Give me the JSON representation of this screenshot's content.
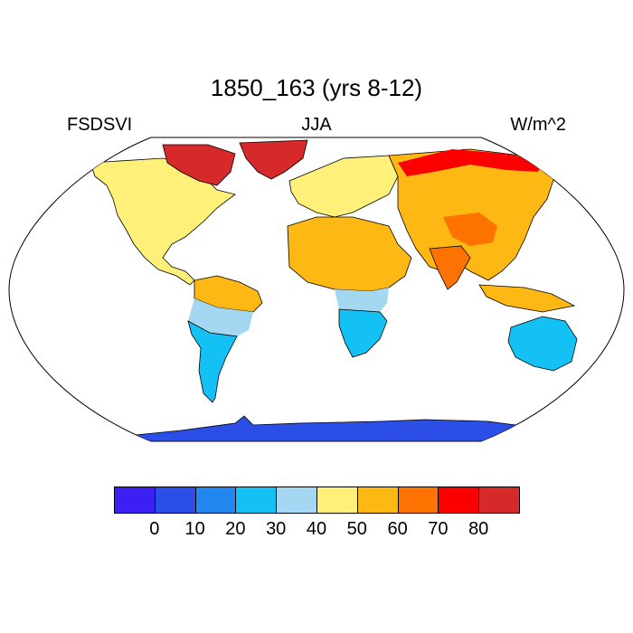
{
  "title": "1850_163 (yrs 8-12)",
  "subtitle_left": "FSDSVI",
  "subtitle_center": "JJA",
  "subtitle_right": "W/m^2",
  "colorbar": {
    "colors": [
      "#3c1ff2",
      "#2a4ee6",
      "#2288f0",
      "#13c1f5",
      "#a3d7f2",
      "#fff07a",
      "#fdb813",
      "#fd7200",
      "#fa0000",
      "#d62a2a"
    ],
    "tick_labels": [
      "0",
      "10",
      "20",
      "30",
      "40",
      "50",
      "60",
      "70",
      "80"
    ]
  },
  "regions": {
    "antarctica": "#2a4ee6",
    "australia": "#13c1f5",
    "south_america_south": "#13c1f5",
    "south_america_mid": "#a3d7f2",
    "south_america_north": "#fdb813",
    "africa_south": "#13c1f5",
    "africa_mid": "#a3d7f2",
    "africa_north": "#fdb813",
    "europe": "#fff07a",
    "asia": "#fdb813",
    "tibet": "#fd7200",
    "north_america": "#fff07a",
    "greenland": "#d62a2a",
    "arctic_canada": "#d62a2a",
    "siberia_north": "#fa0000",
    "india": "#fd7200"
  }
}
